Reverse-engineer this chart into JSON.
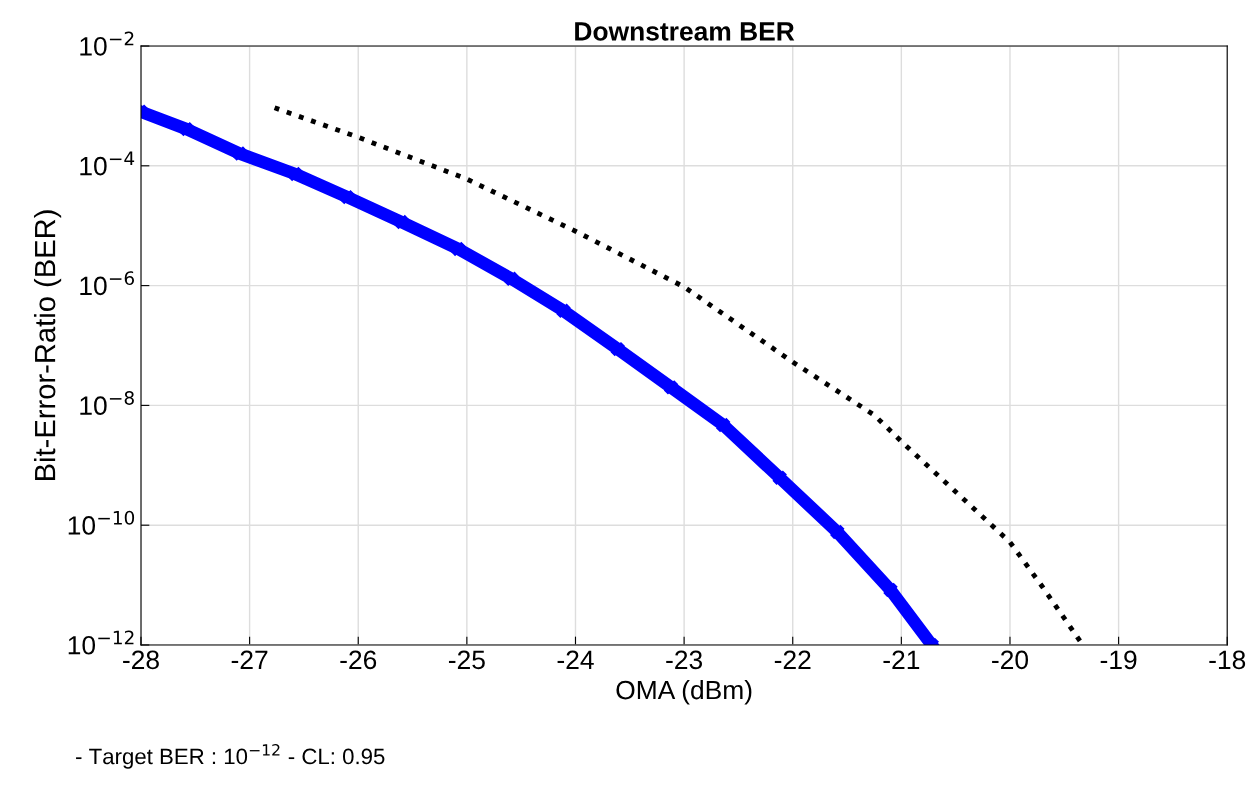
{
  "chart_data": {
    "type": "line",
    "title": "Downstream BER",
    "xlabel": "OMA (dBm)",
    "ylabel": "Bit-Error-Ratio (BER)",
    "annotations": [
      "- Target BER : 10$^{−12}$ - CL: 0.95"
    ],
    "log": "y",
    "grid": true,
    "legend": false,
    "xlim": [
      -28,
      -18
    ],
    "xticks": [
      -28,
      -27,
      -26,
      -25,
      -24,
      -23,
      -22,
      -21,
      -20,
      -19,
      -18
    ],
    "ylim": [
      1e-12,
      0.01
    ],
    "yticks": [
      {
        "value": 1e-12,
        "label": "10$^{−12}$"
      },
      {
        "value": 1e-10,
        "label": "10$^{−10}$"
      },
      {
        "value": 1e-08,
        "label": "10$^{−8}$"
      },
      {
        "value": 1e-06,
        "label": "10$^{−6}$"
      },
      {
        "value": 0.0001,
        "label": "10$^{−4}$"
      },
      {
        "value": 0.01,
        "label": "10$^{−2}$"
      }
    ],
    "series": [
      {
        "color": "#0000ff",
        "line_style": "solid",
        "marker": "cross",
        "x": [
          -28,
          -27.58,
          -27.09,
          -26.58,
          -26.1,
          -25.6,
          -25.08,
          -24.59,
          -24.11,
          -23.61,
          -23.12,
          -22.64,
          -22.12,
          -21.59,
          -21.1,
          -20.72
        ],
        "values": [
          0.0008,
          0.00041,
          0.00016,
          7.3e-05,
          3e-05,
          1.15e-05,
          4.1e-06,
          1.3e-06,
          3.8e-07,
          8.7e-08,
          2e-08,
          4.7e-09,
          6.2e-10,
          7.7e-11,
          8.3e-12,
          1e-12
        ]
      },
      {
        "color": "#000000",
        "line_style": "dotted",
        "marker": "none",
        "x": [
          -26.77,
          -26,
          -25,
          -24,
          -23,
          -22,
          -21.25,
          -21,
          -20,
          -19.7,
          -19.33
        ],
        "values": [
          0.00093,
          0.0003,
          6e-05,
          8.1e-06,
          9.5e-07,
          5.3e-08,
          6.9e-09,
          2.5e-09,
          5.2e-11,
          9.3e-12,
          1e-12
        ]
      }
    ]
  }
}
